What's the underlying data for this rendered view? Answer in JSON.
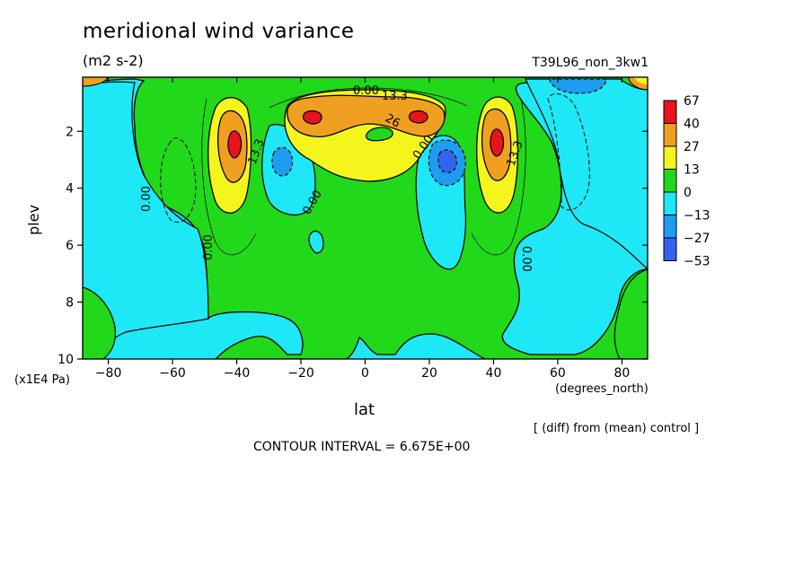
{
  "chart_data": {
    "type": "contour",
    "title": "meridional wind variance",
    "units": "(m2 s-2)",
    "run_label": "T39L96_non_3kw1",
    "xlabel": "lat",
    "xunits": "(degrees_north)",
    "ylabel": "plev",
    "yunits": "(x1E4 Pa)",
    "xlim": [
      -88,
      88
    ],
    "ylim": [
      10,
      0.1
    ],
    "xticks": [
      -80,
      -60,
      -40,
      -20,
      0,
      20,
      40,
      60,
      80
    ],
    "xtick_labels": [
      "−80",
      "−60",
      "−40",
      "−20",
      "0",
      "20",
      "40",
      "60",
      "80"
    ],
    "yticks": [
      2,
      4,
      6,
      8,
      10
    ],
    "ytick_labels": [
      "2",
      "4",
      "6",
      "8",
      "10"
    ],
    "contour_labels": [
      "0.00",
      "13.3",
      "26",
      "0.00",
      "0.00",
      "0.00",
      "0.00",
      "13.3",
      "0.00",
      "0.00"
    ],
    "colorbar": {
      "levels": [
        "67",
        "40",
        "27",
        "13",
        "0",
        "−13",
        "−27",
        "−53"
      ],
      "colors": [
        "#e8141c",
        "#f0a020",
        "#f5f51e",
        "#22d81a",
        "#1ee8f5",
        "#1e9cf0",
        "#3264f0"
      ]
    },
    "extrema": [
      {
        "lat": -40,
        "plev": 2.5,
        "value": 60,
        "sign": "positive"
      },
      {
        "lat": -18,
        "plev": 1.4,
        "value": 60,
        "sign": "positive"
      },
      {
        "lat": 18,
        "plev": 1.4,
        "value": 60,
        "sign": "positive"
      },
      {
        "lat": 40,
        "plev": 2.4,
        "value": 60,
        "sign": "positive"
      },
      {
        "lat": -28,
        "plev": 3.0,
        "value": -20,
        "sign": "negative"
      },
      {
        "lat": 27,
        "plev": 3.0,
        "value": -35,
        "sign": "negative"
      },
      {
        "lat": 68,
        "plev": 0.3,
        "value": -20,
        "sign": "negative"
      }
    ],
    "note": "[ (diff) from (mean) control ]",
    "contour_interval": "CONTOUR INTERVAL = 6.675E+00"
  }
}
